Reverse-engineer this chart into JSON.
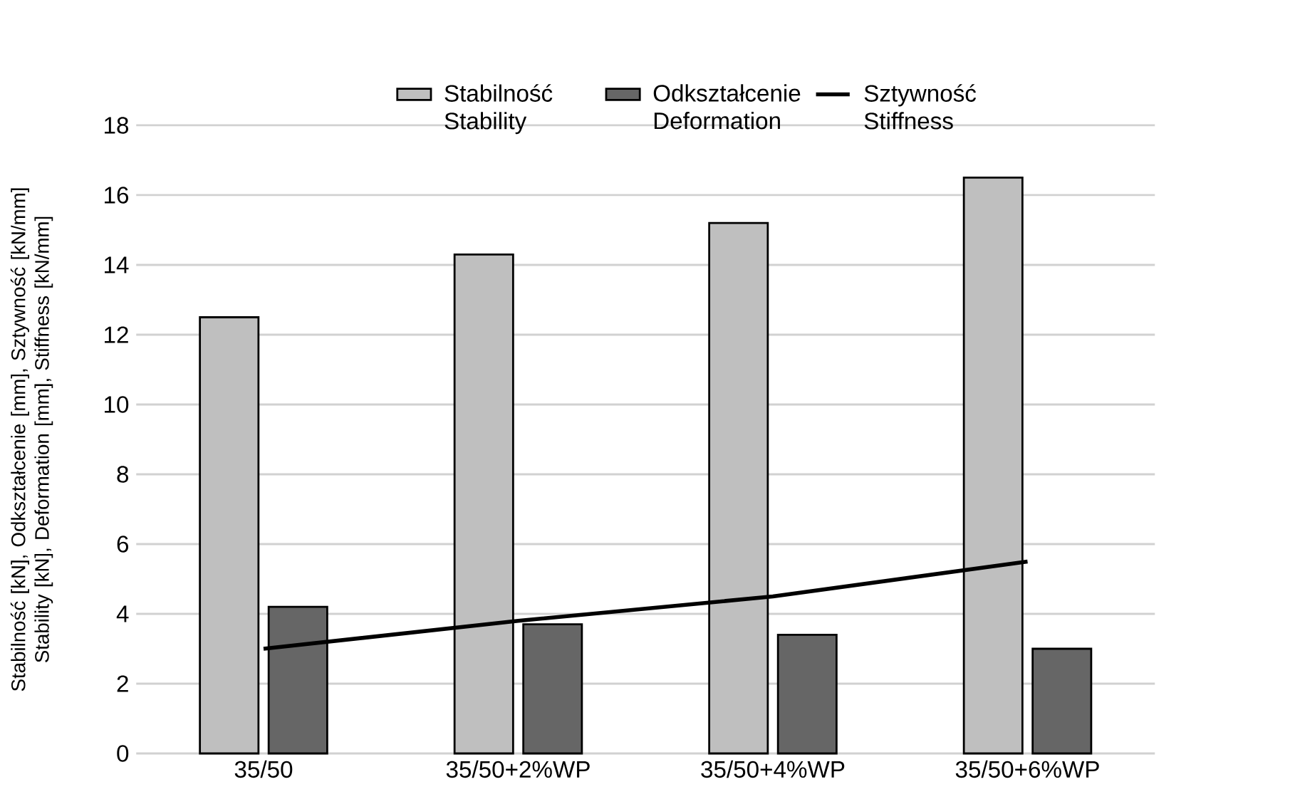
{
  "chart_data": {
    "type": "bar",
    "categories": [
      "35/50",
      "35/50+2%WP",
      "35/50+4%WP",
      "35/50+6%WP"
    ],
    "ylabel": "Stabilność [kN], Odkształcenie [mm], Sztywność [kN/mm] Stability [kN], Deformation [mm], Stiffness [kN/mm]",
    "series": [
      {
        "name": "Stabilność Stability",
        "color": "#bfbfbf",
        "values": [
          12.5,
          14.3,
          15.2,
          16.5
        ]
      },
      {
        "name": "Odkształcenie Deformation",
        "color": "#666666",
        "values": [
          4.2,
          3.7,
          3.4,
          3.0
        ]
      },
      {
        "name": "Sztywność Stiffness",
        "type": "line",
        "color": "#000000",
        "values": [
          3.0,
          3.8,
          4.5,
          5.5
        ]
      }
    ],
    "ylim": [
      0,
      18
    ],
    "yticks": [
      0,
      2,
      4,
      6,
      8,
      10,
      12,
      14,
      16,
      18
    ],
    "grid": "y",
    "legend": "top",
    "marker": "none",
    "line_style": "solid"
  }
}
